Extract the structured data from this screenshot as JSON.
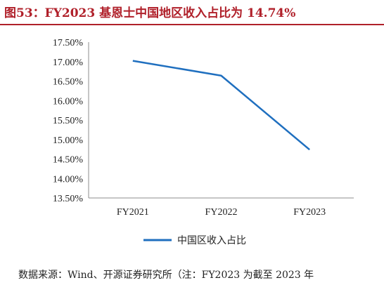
{
  "figure": {
    "title": "图53：FY2023 基恩士中国地区收入占比为 14.74%",
    "source": "数据来源：Wind、开源证券研究所（注：FY2023 为截至 2023 年"
  },
  "colors": {
    "title": "#b0202a",
    "line": "#1f6fbf",
    "axis": "#8c8c8c"
  },
  "chart_data": {
    "type": "line",
    "categories": [
      "FY2021",
      "FY2022",
      "FY2023"
    ],
    "series": [
      {
        "name": "中国区收入占比",
        "values": [
          17.02,
          16.64,
          14.74
        ]
      }
    ],
    "y_ticks": [
      "17.50%",
      "17.00%",
      "16.50%",
      "16.00%",
      "15.50%",
      "15.00%",
      "14.50%",
      "14.00%",
      "13.50%"
    ],
    "ylim": [
      13.5,
      17.5
    ],
    "grid": false,
    "legend": "bottom"
  }
}
